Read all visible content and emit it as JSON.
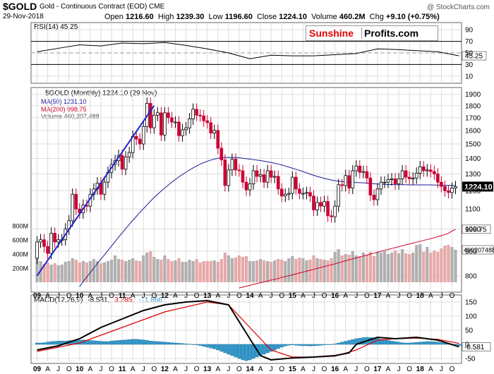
{
  "header": {
    "symbol": "$GOLD",
    "contract": "Gold - Continuous Contract (EOD)  CME",
    "copyright": "@ StockCharts.com",
    "date": "29-Nov-2018",
    "open_label": "Open",
    "open": "1216.60",
    "high_label": "High",
    "high": "1239.30",
    "low_label": "Low",
    "low": "1196.60",
    "close_label": "Close",
    "close": "1224.10",
    "volume_label": "Volume",
    "volume": "460.2M",
    "chg_label": "Chg",
    "chg": "+9.10 (+0.75%)"
  },
  "logo": {
    "part1": "Sunshine",
    "part2": "Profits.com"
  },
  "colors": {
    "up": "#000000",
    "down": "#cc0033",
    "ma50": "#1a1a99",
    "ma200": "#cc0022",
    "trend": "#2222cc",
    "macd": "#000000",
    "signal": "#dd0000",
    "hist": "#3399cc",
    "vol_up": "#b0b0b0",
    "vol_down": "#e8a8a8",
    "rsi": "#000000",
    "grid": "#dddddd"
  },
  "chart_data": [
    {
      "type": "line",
      "title": "RSI(14) 45.25",
      "ylim": [
        0,
        100
      ],
      "y_ticks": [
        "90",
        "70",
        "50",
        "30",
        "10"
      ],
      "last_value_label": "45.25",
      "x": [
        0,
        6,
        12,
        18,
        24,
        30,
        36,
        42,
        48,
        54,
        60,
        66,
        72,
        78,
        84,
        90,
        96,
        101,
        107,
        113,
        119
      ],
      "values": [
        52,
        58,
        64,
        62,
        67,
        66,
        68,
        63,
        57,
        50,
        40,
        46,
        45,
        45,
        47,
        49,
        57,
        56,
        54,
        52,
        45
      ]
    },
    {
      "type": "candlestick",
      "title": "$GOLD (Monthly) 1224.10 (29 Nov)",
      "y_scale": "log",
      "ylim": [
        750,
        1950
      ],
      "y_ticks": [
        "1900",
        "1800",
        "1700",
        "1600",
        "1500",
        "1400",
        "1300",
        "1200",
        "1100",
        "1000",
        "900",
        "800"
      ],
      "last_value_label": "1224.10",
      "legend": [
        "MA(50) 1231.10",
        "MA(200) 998.75",
        "Volume 460,207,488"
      ],
      "ma200_label": "998.75",
      "volume_label": "460207488",
      "volume_ticks": [
        "800M",
        "600M",
        "400M",
        "200M"
      ],
      "x_labels": [
        "09",
        "A",
        "J",
        "O",
        "10",
        "A",
        "J",
        "O",
        "11",
        "A",
        "J",
        "O",
        "12",
        "A",
        "J",
        "O",
        "13",
        "A",
        "J",
        "O",
        "14",
        "A",
        "J",
        "O",
        "15",
        "A",
        "J",
        "O",
        "16",
        "A",
        "J",
        "O",
        "17",
        "A",
        "J",
        "O",
        "18",
        "A",
        "J",
        "O"
      ],
      "start": "2009-01",
      "closes": [
        940,
        950,
        920,
        890,
        980,
        940,
        950,
        950,
        1000,
        1040,
        1180,
        1100,
        1080,
        1120,
        1115,
        1180,
        1210,
        1245,
        1180,
        1250,
        1310,
        1360,
        1385,
        1420,
        1330,
        1410,
        1440,
        1555,
        1535,
        1500,
        1630,
        1820,
        1620,
        1720,
        1740,
        1565,
        1740,
        1700,
        1665,
        1665,
        1560,
        1605,
        1620,
        1690,
        1770,
        1720,
        1715,
        1675,
        1660,
        1580,
        1600,
        1470,
        1390,
        1230,
        1325,
        1395,
        1325,
        1320,
        1250,
        1205,
        1240,
        1320,
        1285,
        1295,
        1250,
        1320,
        1280,
        1285,
        1210,
        1170,
        1180,
        1185,
        1280,
        1210,
        1185,
        1185,
        1190,
        1170,
        1095,
        1135,
        1115,
        1140,
        1065,
        1060,
        1115,
        1235,
        1230,
        1290,
        1215,
        1320,
        1350,
        1310,
        1315,
        1275,
        1175,
        1150,
        1210,
        1250,
        1250,
        1265,
        1270,
        1240,
        1270,
        1320,
        1280,
        1270,
        1275,
        1305,
        1345,
        1320,
        1325,
        1315,
        1300,
        1250,
        1225,
        1200,
        1190,
        1215,
        1224
      ],
      "ma50": [
        null,
        null,
        null,
        null,
        null,
        null,
        null,
        null,
        null,
        null,
        null,
        null,
        760,
        778,
        795,
        812,
        830,
        848,
        866,
        884,
        903,
        922,
        942,
        962,
        982,
        1002,
        1022,
        1042,
        1062,
        1082,
        1102,
        1122,
        1142,
        1162,
        1180,
        1198,
        1216,
        1233,
        1250,
        1266,
        1282,
        1297,
        1311,
        1325,
        1338,
        1350,
        1362,
        1372,
        1381,
        1389,
        1396,
        1401,
        1404,
        1406,
        1407,
        1407,
        1406,
        1404,
        1401,
        1398,
        1395,
        1392,
        1389,
        1386,
        1382,
        1378,
        1373,
        1368,
        1363,
        1357,
        1350,
        1343,
        1336,
        1329,
        1322,
        1315,
        1307,
        1299,
        1292,
        1285,
        1279,
        1273,
        1268,
        1263,
        1259,
        1256,
        1254,
        1252,
        1250,
        1249,
        1248,
        1247,
        1246,
        1245,
        1243,
        1241,
        1239,
        1238,
        1237,
        1236,
        1236,
        1235,
        1235,
        1235,
        1235,
        1234,
        1234,
        1234,
        1234,
        1234,
        1234,
        1234,
        1233,
        1233,
        1232,
        1232,
        1231,
        1231,
        1231
      ],
      "ma200": [
        null,
        null,
        null,
        null,
        null,
        null,
        null,
        null,
        null,
        null,
        null,
        null,
        null,
        null,
        null,
        null,
        null,
        null,
        null,
        null,
        null,
        null,
        null,
        null,
        null,
        null,
        null,
        null,
        null,
        null,
        null,
        null,
        null,
        null,
        null,
        null,
        null,
        null,
        null,
        null,
        null,
        null,
        null,
        null,
        null,
        null,
        null,
        null,
        null,
        null,
        null,
        null,
        null,
        null,
        null,
        null,
        null,
        755,
        758,
        761,
        764,
        768,
        771,
        774,
        777,
        780,
        784,
        787,
        790,
        794,
        797,
        800,
        804,
        807,
        811,
        814,
        818,
        821,
        825,
        829,
        832,
        836,
        840,
        843,
        847,
        851,
        855,
        859,
        863,
        867,
        871,
        875,
        879,
        883,
        887,
        891,
        895,
        899,
        903,
        907,
        911,
        915,
        919,
        923,
        927,
        931,
        935,
        939,
        943,
        947,
        951,
        955,
        959,
        964,
        969,
        974,
        980,
        990,
        999
      ],
      "volume_m": [
        480,
        300,
        260,
        280,
        250,
        270,
        240,
        250,
        290,
        300,
        340,
        320,
        280,
        300,
        280,
        300,
        330,
        300,
        270,
        280,
        300,
        320,
        380,
        330,
        320,
        300,
        320,
        340,
        310,
        300,
        380,
        420,
        440,
        360,
        330,
        320,
        380,
        330,
        300,
        310,
        340,
        290,
        290,
        320,
        300,
        330,
        280,
        300,
        300,
        300,
        310,
        290,
        330,
        420,
        380,
        340,
        350,
        380,
        360,
        370,
        300,
        300,
        310,
        330,
        310,
        300,
        290,
        310,
        330,
        320,
        300,
        340,
        370,
        330,
        350,
        340,
        310,
        320,
        380,
        340,
        330,
        320,
        310,
        340,
        430,
        470,
        380,
        400,
        390,
        440,
        380,
        370,
        420,
        390,
        430,
        370,
        430,
        420,
        440,
        400,
        420,
        450,
        410,
        470,
        410,
        400,
        420,
        530,
        540,
        430,
        500,
        420,
        450,
        430,
        480,
        520,
        530,
        500,
        460
      ]
    },
    {
      "type": "line",
      "title": "MACD(12,26,9) -8.581, 3.285, -11.866",
      "legend": [
        "MACD(12,26,9)",
        "-8.581,",
        "3.285,",
        "-11.866"
      ],
      "ylim": [
        -60,
        170
      ],
      "y_ticks": [
        "150",
        "100",
        "50",
        "0",
        "-50"
      ],
      "last_value_label": "-8.581",
      "macd_x": [
        0,
        6,
        12,
        18,
        24,
        30,
        36,
        42,
        48,
        54,
        57,
        60,
        63,
        66,
        72,
        78,
        84,
        88,
        90,
        96,
        101,
        107,
        113,
        119
      ],
      "macd": [
        -20,
        -5,
        20,
        60,
        90,
        120,
        140,
        150,
        155,
        140,
        80,
        20,
        -40,
        -55,
        -48,
        -45,
        -40,
        -30,
        0,
        25,
        20,
        25,
        15,
        -8.58
      ],
      "signal_x": [
        0,
        12,
        24,
        36,
        48,
        54,
        60,
        66,
        72,
        78,
        84,
        90,
        96,
        101,
        107,
        113,
        119
      ],
      "signal": [
        -25,
        5,
        60,
        115,
        150,
        140,
        60,
        -20,
        -45,
        -45,
        -42,
        -20,
        15,
        20,
        22,
        18,
        3.3
      ],
      "hist": [
        5,
        5,
        6,
        8,
        10,
        11,
        12,
        12,
        12,
        13,
        14,
        14,
        15,
        16,
        15,
        14,
        13,
        12,
        11,
        10,
        10,
        12,
        13,
        14,
        15,
        16,
        17,
        18,
        18,
        17,
        16,
        14,
        12,
        11,
        10,
        9,
        8,
        7,
        6,
        5,
        4,
        3,
        2,
        1,
        0,
        -2,
        -4,
        -7,
        -10,
        -13,
        -16,
        -20,
        -25,
        -30,
        -35,
        -40,
        -45,
        -50,
        -55,
        -58,
        -55,
        -50,
        -45,
        -40,
        -35,
        -30,
        -25,
        -20,
        -15,
        -10,
        -6,
        -3,
        -2,
        -3,
        -4,
        -5,
        -5,
        -6,
        -5,
        -4,
        -3,
        -2,
        -1,
        0,
        2,
        5,
        8,
        11,
        14,
        17,
        20,
        22,
        24,
        25,
        24,
        23,
        21,
        18,
        16,
        14,
        12,
        10,
        8,
        6,
        5,
        5,
        6,
        7,
        8,
        9,
        10,
        10,
        9,
        8,
        6,
        4,
        2,
        0,
        -2,
        -4,
        -6,
        -8,
        -10,
        -11,
        -11.9
      ],
      "x_labels": [
        "09",
        "A",
        "J",
        "O",
        "10",
        "A",
        "J",
        "O",
        "11",
        "A",
        "J",
        "O",
        "12",
        "A",
        "J",
        "O",
        "13",
        "A",
        "J",
        "O",
        "14",
        "A",
        "J",
        "O",
        "15",
        "A",
        "J",
        "O",
        "16",
        "A",
        "J",
        "O",
        "17",
        "A",
        "J",
        "O",
        "18",
        "A",
        "J",
        "O"
      ]
    }
  ]
}
